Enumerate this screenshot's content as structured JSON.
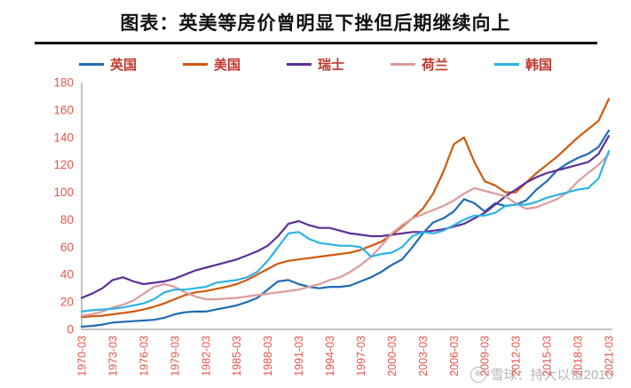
{
  "title": "图表：英美等房价曾明显下挫但后期继续向上",
  "watermark": {
    "icon": "snowball-icon",
    "text": "雪球：持大以恒2010"
  },
  "styles": {
    "tick_color": "#e8534a",
    "legend_text_color": "#c2362c",
    "axis_line_color": "#8a8a8a"
  },
  "chart_data": {
    "type": "line",
    "title": "图表：英美等房价曾明显下挫但后期继续向上",
    "xlabel": "",
    "ylabel": "",
    "ylim": [
      0,
      180
    ],
    "y_ticks": [
      0,
      20,
      40,
      60,
      80,
      100,
      120,
      140,
      160,
      180
    ],
    "grid": false,
    "legend_position": "top",
    "x_tick_labels": [
      "1970-03",
      "1973-03",
      "1976-03",
      "1979-03",
      "1982-03",
      "1985-03",
      "1988-03",
      "1991-03",
      "1994-03",
      "1997-03",
      "2000-03",
      "2003-03",
      "2006-03",
      "2009-03",
      "2012-03",
      "2015-03",
      "2018-03",
      "2021-03"
    ],
    "x_years": [
      1970,
      1971,
      1972,
      1973,
      1974,
      1975,
      1976,
      1977,
      1978,
      1979,
      1980,
      1981,
      1982,
      1983,
      1984,
      1985,
      1986,
      1987,
      1988,
      1989,
      1990,
      1991,
      1992,
      1993,
      1994,
      1995,
      1996,
      1997,
      1998,
      1999,
      2000,
      2001,
      2002,
      2003,
      2004,
      2005,
      2006,
      2007,
      2008,
      2009,
      2010,
      2011,
      2012,
      2013,
      2014,
      2015,
      2016,
      2017,
      2018,
      2019,
      2020,
      2021
    ],
    "series": [
      {
        "name": "英国",
        "color": "#1f6cb4",
        "values": [
          2,
          2.5,
          3.5,
          5,
          5.5,
          6,
          6.5,
          7,
          8.5,
          11,
          12.5,
          13,
          13,
          14.5,
          16,
          17.5,
          20,
          23,
          29,
          35,
          36,
          33,
          31,
          30,
          31,
          31,
          32,
          35,
          38,
          42,
          47,
          51,
          60,
          70,
          78,
          81,
          86,
          95,
          92,
          86,
          92,
          90,
          91,
          94,
          102,
          108,
          116,
          121,
          125,
          128,
          133,
          145
        ]
      },
      {
        "name": "美国",
        "color": "#cf5a0e",
        "values": [
          9,
          9.5,
          10,
          11,
          12,
          13,
          14.5,
          16.5,
          19,
          22,
          25,
          27,
          28,
          29.5,
          31,
          33,
          36,
          40,
          44,
          48,
          50,
          51,
          52,
          53,
          54,
          55,
          56,
          58,
          61,
          64,
          69,
          75,
          81,
          88,
          99,
          115,
          135,
          140,
          122,
          108,
          105,
          100,
          100,
          107,
          114,
          120,
          126,
          133,
          140,
          146,
          152,
          168
        ]
      },
      {
        "name": "瑞士",
        "color": "#5c2f99",
        "values": [
          23,
          26,
          30,
          36,
          38,
          35,
          33,
          34,
          35,
          37,
          40,
          43,
          45,
          47,
          49,
          51,
          54,
          57,
          61,
          68,
          77,
          79,
          76,
          74,
          74,
          72,
          70,
          69,
          68,
          68,
          69,
          70,
          71,
          71,
          72,
          73,
          75,
          77,
          81,
          85,
          91,
          97,
          102,
          107,
          111,
          114,
          116,
          118,
          120,
          122,
          128,
          141
        ]
      },
      {
        "name": "荷兰",
        "color": "#dd9c9c",
        "values": [
          10,
          11,
          13,
          16,
          18,
          21,
          26,
          31,
          33,
          31,
          27,
          24,
          22,
          22,
          22.5,
          23,
          24,
          25,
          26,
          27,
          28,
          29,
          31,
          33,
          36,
          38,
          42,
          47,
          53,
          61,
          70,
          76,
          81,
          84,
          87,
          90,
          94,
          99,
          103,
          101,
          99,
          97,
          92,
          88,
          89,
          92,
          95,
          100,
          108,
          114,
          120,
          128
        ]
      },
      {
        "name": "韩国",
        "color": "#2db3e6",
        "values": [
          13,
          14,
          14.5,
          15,
          16,
          17.5,
          19,
          22,
          27,
          29,
          29,
          30,
          31,
          34,
          35,
          36,
          38,
          42,
          50,
          60,
          70,
          71,
          66,
          63,
          62,
          61,
          61,
          60,
          53,
          55,
          56,
          60,
          68,
          71,
          70,
          72,
          76,
          80,
          83,
          83,
          85,
          90,
          91,
          91,
          93,
          96,
          98,
          100,
          102,
          103,
          110,
          130
        ]
      }
    ]
  }
}
